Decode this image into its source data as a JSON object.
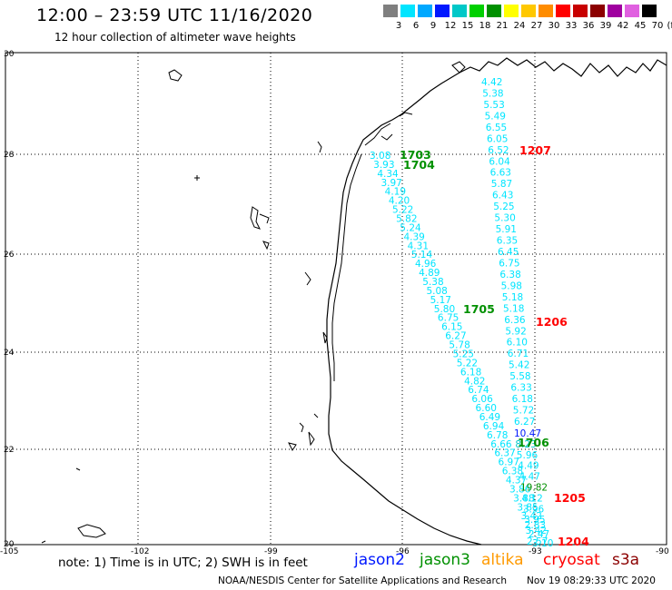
{
  "header": {
    "title": "12:00 – 23:59 UTC 11/16/2020",
    "subtitle": "12 hour collection of altimeter wave heights"
  },
  "colorbar": {
    "labels": [
      "3",
      "6",
      "9",
      "12",
      "15",
      "18",
      "21",
      "24",
      "27",
      "30",
      "33",
      "36",
      "39",
      "42",
      "45",
      "70"
    ],
    "unit": "(ft)",
    "colors": [
      "#7f7f7f",
      "#00e5ff",
      "#00a8ff",
      "#0018ff",
      "#00c8c8",
      "#00d000",
      "#009000",
      "#ffff00",
      "#ffc800",
      "#ff8c00",
      "#ff0000",
      "#c80000",
      "#8c0000",
      "#a000a0",
      "#e060e0",
      "#000000"
    ]
  },
  "axes": {
    "lon_labels": [
      "-105",
      "-102",
      "-99",
      "-96",
      "-93",
      "-90"
    ],
    "lat_labels": [
      "30",
      "28",
      "26",
      "24",
      "22",
      "20"
    ]
  },
  "track_a": {
    "color": "#00e5ff",
    "values": [
      "3.08",
      "3.93",
      "4.34",
      "3.97",
      "4.19",
      "4.20",
      "5.22",
      "5.82",
      "5.24",
      "4.39",
      "4.31",
      "5.14",
      "4.96",
      "4.89",
      "5.38",
      "5.08",
      "5.17",
      "5.80",
      "6.75",
      "6.15",
      "6.27",
      "5.78",
      "5.25",
      "5.22",
      "6.18",
      "4.82",
      "6.74",
      "6.06",
      "6.60",
      "6.49",
      "6.94",
      "6.78",
      "6.66",
      "6.37",
      "6.97",
      "6.38",
      "4.37",
      "3.86",
      "3.88",
      "3.85",
      "3.42",
      "2.83",
      "2.47",
      "3.10"
    ]
  },
  "track_b": {
    "color": "#00e5ff",
    "values": [
      "4.42",
      "5.38",
      "5.53",
      "5.49",
      "6.55",
      "6.05",
      "6.52",
      "6.04",
      "6.63",
      "5.87",
      "6.43",
      "5.25",
      "5.30",
      "5.91",
      "6.35",
      "6.45",
      "6.75",
      "6.38",
      "5.98",
      "5.18",
      "5.18",
      "6.36",
      "5.92",
      "6.10",
      "6.71",
      "5.42",
      "5.58",
      "6.33",
      "6.18",
      "5.72",
      "6.27"
    ]
  },
  "track_b_extra": [
    {
      "text": "10.47",
      "color": "#0018ff"
    },
    {
      "text": "8.23",
      "color": "#00c8c8"
    },
    {
      "text": "5.96",
      "color": "#00e5ff"
    },
    {
      "text": "4.49",
      "color": "#00e5ff"
    },
    {
      "text": "4.47",
      "color": "#00e5ff"
    },
    {
      "text": "19.82",
      "color": "#009000"
    },
    {
      "text": "4.12",
      "color": "#00e5ff"
    },
    {
      "text": "3.96",
      "color": "#00e5ff"
    },
    {
      "text": "3.95",
      "color": "#00e5ff"
    },
    {
      "text": "3.42",
      "color": "#00e5ff"
    },
    {
      "text": "2.57",
      "color": "#00e5ff"
    }
  ],
  "time_labels": [
    {
      "text": "1703",
      "color": "#009000"
    },
    {
      "text": "1704",
      "color": "#009000"
    },
    {
      "text": "1705",
      "color": "#009000"
    },
    {
      "text": "1706",
      "color": "#009000"
    },
    {
      "text": "1207",
      "color": "#ff0000"
    },
    {
      "text": "1206",
      "color": "#ff0000"
    },
    {
      "text": "1205",
      "color": "#ff0000"
    },
    {
      "text": "1204",
      "color": "#ff0000"
    }
  ],
  "footer": {
    "note": "note: 1) Time is in UTC; 2) SWH is in feet",
    "satellites": [
      {
        "name": "jason2",
        "color": "#0018ff"
      },
      {
        "name": "jason3",
        "color": "#009000"
      },
      {
        "name": "altika",
        "color": "#ff9a00"
      },
      {
        "name": "cryosat",
        "color": "#ff0000"
      },
      {
        "name": "s3a",
        "color": "#8c0000"
      }
    ],
    "credit": "NOAA/NESDIS Center for Satellite Applications and Research",
    "timestamp": "Nov 19 08:29:33 UTC 2020"
  }
}
